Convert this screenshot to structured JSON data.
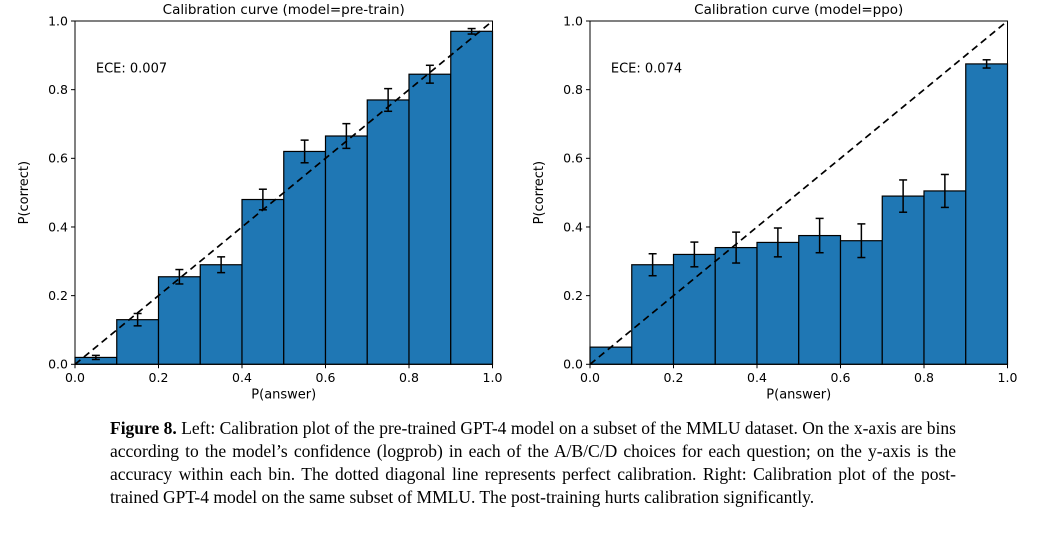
{
  "figure": {
    "caption": {
      "label": "Figure 8.",
      "text": " Left: Calibration plot of the pre-trained GPT-4 model on a subset of the MMLU dataset. On the x-axis are bins according to the model’s confidence (logprob) in each of the A/B/C/D choices for each question; on the y-axis is the accuracy within each bin. The dotted diagonal line represents perfect calibration. Right: Calibration plot of the post-trained GPT-4 model on the same subset of MMLU. The post-training hurts calibration significantly."
    }
  },
  "colors": {
    "bar_fill": "#1f77b4",
    "bar_edge": "#000000",
    "diagonal": "#000000",
    "error_bar": "#000000",
    "axis": "#000000",
    "background": "#ffffff"
  },
  "chart_data": [
    {
      "type": "bar",
      "title": "Calibration curve (model=pre-train)",
      "annotation": "ECE: 0.007",
      "xlabel": "P(answer)",
      "ylabel": "P(correct)",
      "xlim": [
        0,
        1
      ],
      "ylim": [
        0,
        1
      ],
      "grid": false,
      "diagonal": true,
      "xticks": [
        "0.0",
        "0.2",
        "0.4",
        "0.6",
        "0.8",
        "1.0"
      ],
      "yticks": [
        "0.0",
        "0.2",
        "0.4",
        "0.6",
        "0.8",
        "1.0"
      ],
      "bin_edges": [
        0.0,
        0.1,
        0.2,
        0.3,
        0.4,
        0.5,
        0.6,
        0.7,
        0.8,
        0.9,
        1.0
      ],
      "values": [
        0.02,
        0.13,
        0.255,
        0.29,
        0.48,
        0.62,
        0.665,
        0.77,
        0.845,
        0.97
      ],
      "errors": [
        0.006,
        0.018,
        0.021,
        0.023,
        0.03,
        0.033,
        0.036,
        0.033,
        0.026,
        0.008
      ]
    },
    {
      "type": "bar",
      "title": "Calibration curve (model=ppo)",
      "annotation": "ECE: 0.074",
      "xlabel": "P(answer)",
      "ylabel": "P(correct)",
      "xlim": [
        0,
        1
      ],
      "ylim": [
        0,
        1
      ],
      "grid": false,
      "diagonal": true,
      "xticks": [
        "0.0",
        "0.2",
        "0.4",
        "0.6",
        "0.8",
        "1.0"
      ],
      "yticks": [
        "0.0",
        "0.2",
        "0.4",
        "0.6",
        "0.8",
        "1.0"
      ],
      "bin_edges": [
        0.0,
        0.1,
        0.2,
        0.3,
        0.4,
        0.5,
        0.6,
        0.7,
        0.8,
        0.9,
        1.0
      ],
      "values": [
        0.05,
        0.29,
        0.32,
        0.34,
        0.355,
        0.375,
        0.36,
        0.49,
        0.505,
        0.875
      ],
      "errors": [
        0,
        0.032,
        0.036,
        0.045,
        0.042,
        0.05,
        0.049,
        0.047,
        0.048,
        0.012
      ]
    }
  ]
}
